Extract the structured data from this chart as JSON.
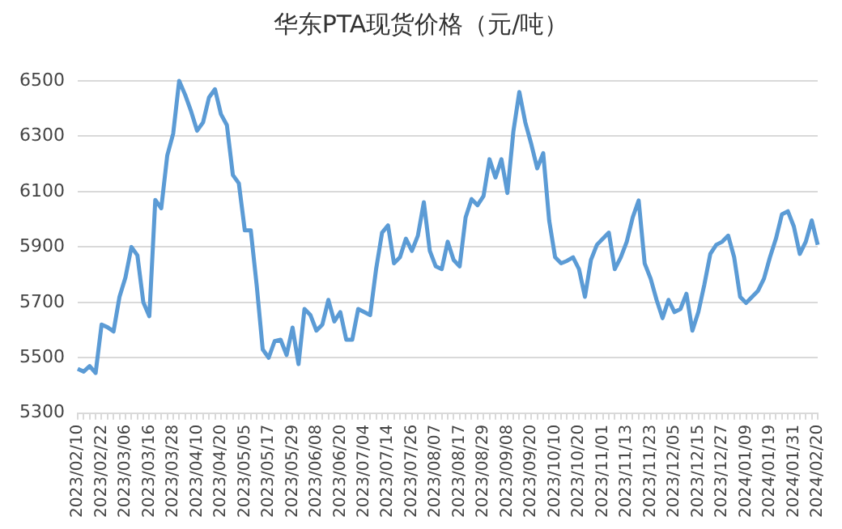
{
  "chart_data": {
    "type": "line",
    "title": "华东PTA现货价格（元/吨）",
    "categories": [
      "2023/02/10",
      null,
      null,
      null,
      "2023/02/22",
      null,
      null,
      null,
      "2023/03/06",
      null,
      null,
      null,
      "2023/03/16",
      null,
      null,
      null,
      "2023/03/28",
      null,
      null,
      null,
      "2023/04/10",
      null,
      null,
      null,
      "2023/04/20",
      null,
      null,
      null,
      "2023/05/05",
      null,
      null,
      null,
      "2023/05/17",
      null,
      null,
      null,
      "2023/05/29",
      null,
      null,
      null,
      "2023/06/08",
      null,
      null,
      null,
      "2023/06/20",
      null,
      null,
      null,
      "2023/07/04",
      null,
      null,
      null,
      "2023/07/14",
      null,
      null,
      null,
      "2023/07/26",
      null,
      null,
      null,
      "2023/08/07",
      null,
      null,
      null,
      "2023/08/17",
      null,
      null,
      null,
      "2023/08/29",
      null,
      null,
      null,
      "2023/09/08",
      null,
      null,
      null,
      "2023/09/20",
      null,
      null,
      null,
      "2023/10/10",
      null,
      null,
      null,
      "2023/10/20",
      null,
      null,
      null,
      "2023/11/01",
      null,
      null,
      null,
      "2023/11/13",
      null,
      null,
      null,
      "2023/11/23",
      null,
      null,
      null,
      "2023/12/05",
      null,
      null,
      null,
      "2023/12/15",
      null,
      null,
      null,
      "2023/12/27",
      null,
      null,
      null,
      "2024/01/09",
      null,
      null,
      null,
      "2024/01/19",
      null,
      null,
      null,
      "2024/01/31",
      null,
      null,
      null,
      "2024/02/20"
    ],
    "values": [
      5460,
      5450,
      5470,
      5445,
      5620,
      5610,
      5595,
      5720,
      5790,
      5900,
      5870,
      5700,
      5650,
      6070,
      6040,
      6230,
      6310,
      6500,
      6450,
      6390,
      6320,
      6350,
      6440,
      6470,
      6380,
      6340,
      6160,
      6130,
      5960,
      5960,
      5760,
      5530,
      5500,
      5560,
      5565,
      5510,
      5609,
      5477,
      5676,
      5654,
      5598,
      5620,
      5709,
      5631,
      5665,
      5565,
      5565,
      5676,
      5665,
      5654,
      5820,
      5952,
      5978,
      5841,
      5863,
      5930,
      5886,
      5941,
      6062,
      5886,
      5830,
      5820,
      5919,
      5853,
      5830,
      6007,
      6073,
      6051,
      6084,
      6217,
      6151,
      6217,
      6095,
      6317,
      6460,
      6350,
      6272,
      6184,
      6239,
      5996,
      5863,
      5841,
      5850,
      5863,
      5820,
      5720,
      5853,
      5908,
      5930,
      5952,
      5820,
      5863,
      5919,
      6007,
      6068,
      5841,
      5786,
      5709,
      5643,
      5709,
      5665,
      5676,
      5731,
      5598,
      5665,
      5764,
      5875,
      5908,
      5919,
      5941,
      5863,
      5720,
      5698,
      5720,
      5742,
      5786,
      5863,
      5930,
      6018,
      6029,
      5974,
      5875,
      5919,
      5996,
      5908
    ],
    "color": "#5b9bd5",
    "ylim": [
      5300,
      6500
    ],
    "yticks": [
      5300,
      5500,
      5700,
      5900,
      6100,
      6300,
      6500
    ],
    "grid": "y",
    "legend": false
  }
}
